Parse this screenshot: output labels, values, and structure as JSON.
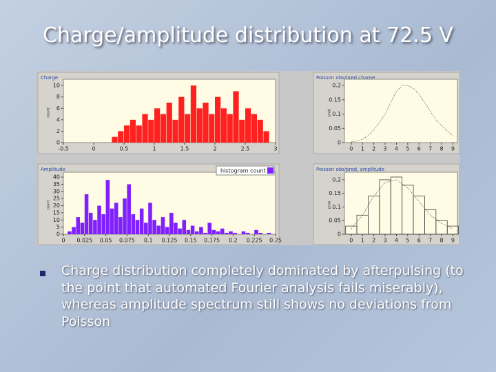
{
  "title": "Charge/amplitude distribution at 72.5 V",
  "bullet": "Charge distribution completely dominated by afterpulsing (to the point that automated Fourier analysis fails miserably), whereas amplitude spectrum still shows no deviations from Poisson",
  "chart_data": [
    {
      "type": "histogram",
      "title": "Charge",
      "ylabel": "count",
      "bins": [
        0.3,
        0.4,
        0.5,
        0.6,
        0.7,
        0.8,
        0.9,
        1.0,
        1.1,
        1.2,
        1.3,
        1.4,
        1.5,
        1.6,
        1.7,
        1.8,
        1.9,
        2.0,
        2.1,
        2.2,
        2.3,
        2.4,
        2.5,
        2.6,
        2.7,
        2.8,
        2.9
      ],
      "series": [
        {
          "color": "#ff2020",
          "values": [
            1,
            2,
            3,
            4,
            3,
            5,
            4,
            6,
            5,
            7,
            4,
            8,
            5,
            10,
            6,
            7,
            5,
            8,
            6,
            5,
            9,
            4,
            6,
            5,
            4,
            2
          ]
        }
      ],
      "xlim": [
        -0.5,
        3
      ],
      "xticks": [
        -0.5,
        0,
        0.5,
        1,
        1.5,
        2,
        2.5,
        3
      ],
      "ylim": [
        0,
        10.5
      ],
      "yticks": [
        0,
        2,
        4,
        6,
        8,
        10
      ]
    },
    {
      "type": "line",
      "title": "Poisson obs/pred charge",
      "ylabel": "prob",
      "x": [
        0,
        0.5,
        1,
        1.5,
        2,
        2.5,
        3,
        3.5,
        4,
        4.5,
        5,
        5.5,
        6,
        6.5,
        7,
        7.5,
        8,
        8.5,
        9
      ],
      "series": [
        {
          "color": "#606060",
          "dash": true,
          "values": [
            0.002,
            0.005,
            0.012,
            0.025,
            0.045,
            0.07,
            0.1,
            0.14,
            0.18,
            0.2,
            0.2,
            0.19,
            0.17,
            0.14,
            0.11,
            0.08,
            0.06,
            0.04,
            0.025
          ]
        }
      ],
      "xlim": [
        -0.6,
        9.4
      ],
      "xticks": [
        0,
        1,
        2,
        3,
        4,
        5,
        6,
        7,
        8,
        9
      ],
      "ylim": [
        0,
        0.21
      ],
      "yticks": [
        0,
        0.05,
        0.1,
        0.15,
        0.2
      ]
    },
    {
      "type": "histogram",
      "title": "Amplitude",
      "ylabel": "count",
      "bins": [
        0,
        0.005,
        0.01,
        0.015,
        0.02,
        0.025,
        0.03,
        0.035,
        0.04,
        0.045,
        0.05,
        0.055,
        0.06,
        0.065,
        0.07,
        0.075,
        0.08,
        0.085,
        0.09,
        0.095,
        0.1,
        0.105,
        0.11,
        0.115,
        0.12,
        0.125,
        0.13,
        0.135,
        0.14,
        0.145,
        0.15,
        0.155,
        0.16,
        0.165,
        0.17,
        0.175,
        0.18,
        0.185,
        0.19,
        0.195,
        0.2,
        0.205,
        0.21,
        0.215,
        0.22,
        0.225,
        0.23,
        0.235,
        0.24,
        0.245,
        0.25
      ],
      "series": [
        {
          "name": "histogram count",
          "color": "#8020ff",
          "values": [
            0,
            2,
            5,
            12,
            8,
            28,
            15,
            10,
            20,
            14,
            38,
            18,
            22,
            12,
            25,
            35,
            14,
            10,
            18,
            8,
            22,
            10,
            6,
            12,
            5,
            15,
            8,
            4,
            10,
            3,
            6,
            2,
            5,
            1,
            8,
            3,
            2,
            4,
            1,
            2,
            1,
            0,
            2,
            1,
            0,
            3,
            1,
            0,
            1,
            0
          ]
        }
      ],
      "xlim": [
        0,
        0.25
      ],
      "xticks": [
        0,
        0.025,
        0.05,
        0.075,
        0.1,
        0.125,
        0.15,
        0.175,
        0.2,
        0.225,
        0.25
      ],
      "ylim": [
        0,
        41
      ],
      "yticks": [
        0,
        5,
        10,
        15,
        20,
        25,
        30,
        35,
        40
      ]
    },
    {
      "type": "combo",
      "title": "Poisson obs/pred, amplitude",
      "ylabel": "prob",
      "x": [
        0,
        1,
        2,
        3,
        4,
        5,
        6,
        7,
        8,
        9
      ],
      "series": [
        {
          "type": "bar",
          "color": "#404040",
          "values": [
            0.03,
            0.07,
            0.14,
            0.2,
            0.21,
            0.18,
            0.14,
            0.09,
            0.05,
            0.03
          ]
        },
        {
          "type": "line",
          "dash": true,
          "color": "#606060",
          "values": [
            0.02,
            0.07,
            0.14,
            0.19,
            0.2,
            0.17,
            0.12,
            0.07,
            0.04,
            0.02
          ]
        }
      ],
      "xlim": [
        -0.6,
        9.4
      ],
      "xticks": [
        0,
        1,
        2,
        3,
        4,
        5,
        6,
        7,
        8,
        9
      ],
      "ylim": [
        0,
        0.215
      ],
      "yticks": [
        0,
        0.05,
        0.1,
        0.15,
        0.2
      ]
    }
  ]
}
